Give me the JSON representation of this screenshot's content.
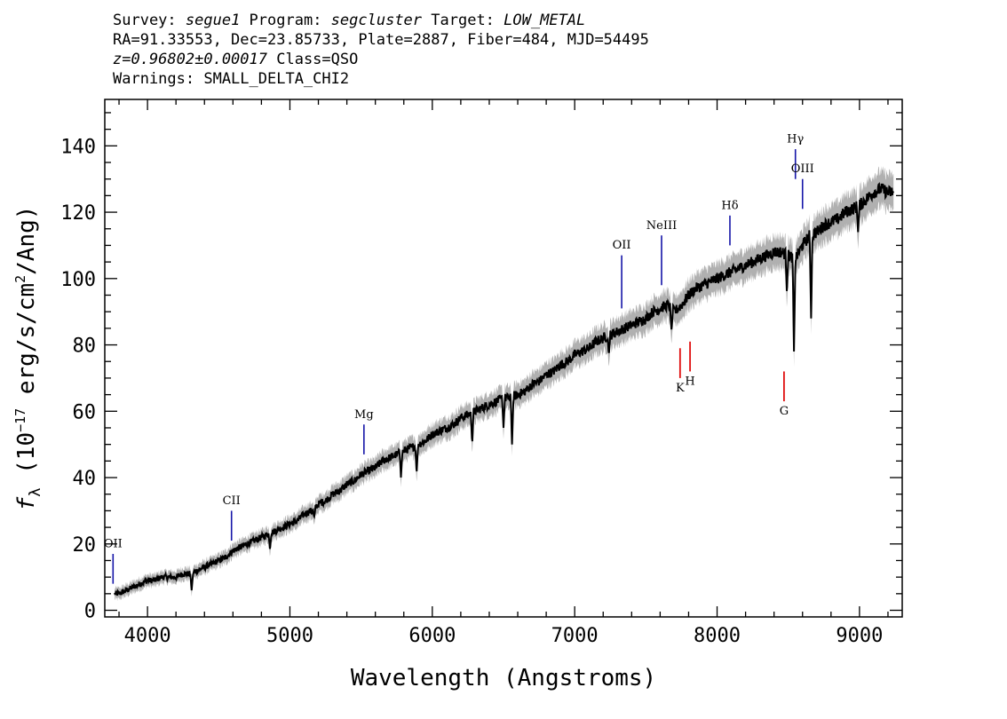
{
  "header": {
    "line1": {
      "survey_label": "Survey: ",
      "survey": "segue1",
      "program_label": " Program: ",
      "program": "segcluster",
      "target_label": " Target: ",
      "target": "LOW_METAL"
    },
    "line2": "RA=91.33553, Dec=23.85733, Plate=2887, Fiber=484, MJD=54495",
    "line3": {
      "z": "z=0.96802±0.00017",
      "class": " Class=QSO"
    },
    "line4": "Warnings: SMALL_DELTA_CHI2"
  },
  "chart_data": {
    "type": "line",
    "xlabel": "Wavelength (Angstroms)",
    "ylabel_parts": {
      "f": "f",
      "lambda": "λ",
      "pre": " (10",
      "exp": "−17",
      "mid": " erg/s/cm",
      "exp2": "2",
      "post": "/Ang)"
    },
    "xlim": [
      3700,
      9300
    ],
    "ylim": [
      -2,
      154
    ],
    "x_ticks": [
      4000,
      5000,
      6000,
      7000,
      8000,
      9000
    ],
    "y_ticks": [
      0,
      20,
      40,
      60,
      80,
      100,
      120,
      140
    ],
    "x_minor_step": 200,
    "y_minor_step": 5,
    "colors": {
      "flux": "#000000",
      "error_band": "#b0b0b0",
      "emission": "#1515a8",
      "absorption": "#e01010"
    },
    "series": [
      {
        "values_x": [
          3800,
          3850,
          3900,
          3950,
          4000,
          4050,
          4100,
          4150,
          4200,
          4250,
          4300,
          4350,
          4400,
          4450,
          4500,
          4550,
          4600,
          4650,
          4700,
          4750,
          4800,
          4850,
          4900,
          4950,
          5000,
          5050,
          5100,
          5150,
          5200,
          5250,
          5300,
          5350,
          5400,
          5450,
          5500,
          5550,
          5600,
          5650,
          5700,
          5750,
          5800,
          5850,
          5900,
          5950,
          6000,
          6050,
          6100,
          6150,
          6200,
          6250,
          6300,
          6350,
          6400,
          6450,
          6500,
          6550,
          6600,
          6650,
          6700,
          6750,
          6800,
          6850,
          6900,
          6950,
          7000,
          7050,
          7100,
          7150,
          7200,
          7250,
          7300,
          7350,
          7400,
          7450,
          7500,
          7550,
          7600,
          7650,
          7700,
          7750,
          7800,
          7850,
          7900,
          7950,
          8000,
          8050,
          8100,
          8150,
          8200,
          8250,
          8300,
          8350,
          8400,
          8450,
          8500,
          8550,
          8600,
          8650,
          8700,
          8750,
          8800,
          8850,
          8900,
          8950,
          9000,
          9050,
          9100,
          9150,
          9200
        ],
        "values_y": [
          5,
          6,
          7,
          8,
          9,
          9,
          10,
          10,
          10,
          11,
          11,
          12,
          13,
          14,
          15,
          16,
          18,
          19,
          20,
          21,
          22,
          23,
          24,
          25,
          26,
          27,
          29,
          30,
          32,
          33,
          35,
          36,
          38,
          39,
          41,
          42,
          43,
          45,
          46,
          47,
          48,
          49,
          50,
          51,
          53,
          54,
          55,
          56,
          58,
          59,
          60,
          61,
          62,
          63,
          64,
          64,
          65,
          66,
          68,
          69,
          71,
          72,
          74,
          75,
          77,
          78,
          79,
          81,
          82,
          83,
          84,
          85,
          86,
          87,
          88,
          90,
          91,
          92,
          90,
          92,
          95,
          97,
          98,
          99,
          100,
          101,
          102,
          103,
          104,
          105,
          106,
          107,
          108,
          108,
          107,
          106,
          110,
          113,
          114,
          116,
          117,
          118,
          120,
          121,
          122,
          124,
          126,
          127,
          126
        ],
        "absorption_dips": [
          {
            "x": 4310,
            "y": 6
          },
          {
            "x": 4860,
            "y": 18
          },
          {
            "x": 5170,
            "y": 28
          },
          {
            "x": 5780,
            "y": 40
          },
          {
            "x": 5890,
            "y": 41
          },
          {
            "x": 6280,
            "y": 50
          },
          {
            "x": 6500,
            "y": 55
          },
          {
            "x": 6560,
            "y": 50
          },
          {
            "x": 7240,
            "y": 77
          },
          {
            "x": 7680,
            "y": 84
          },
          {
            "x": 8490,
            "y": 95
          },
          {
            "x": 8540,
            "y": 78
          },
          {
            "x": 8660,
            "y": 88
          },
          {
            "x": 8990,
            "y": 114
          }
        ]
      }
    ],
    "emission_lines": [
      {
        "label": "OII",
        "x": 3758,
        "y_top": 17,
        "y_bottom": 8,
        "label_y": 19
      },
      {
        "label": "CII",
        "x": 4590,
        "y_top": 30,
        "y_bottom": 21,
        "label_y": 32
      },
      {
        "label": "Mg",
        "x": 5520,
        "y_top": 56,
        "y_bottom": 47,
        "label_y": 58
      },
      {
        "label": "OII",
        "x": 7330,
        "y_top": 107,
        "y_bottom": 91,
        "label_y": 109
      },
      {
        "label": "NeIII",
        "x": 7610,
        "y_top": 113,
        "y_bottom": 98,
        "label_y": 115
      },
      {
        "label": "Hδ",
        "x": 8090,
        "y_top": 119,
        "y_bottom": 110,
        "label_y": 121
      },
      {
        "label": "Hγ",
        "x": 8550,
        "y_top": 139,
        "y_bottom": 130,
        "label_y": 141
      },
      {
        "label": "OIII",
        "x": 8600,
        "y_top": 130,
        "y_bottom": 121,
        "label_y": 132
      }
    ],
    "absorption_lines": [
      {
        "label": "K",
        "x": 7740,
        "y_top": 79,
        "y_bottom": 70,
        "label_y": 66
      },
      {
        "label": "H",
        "x": 7810,
        "y_top": 81,
        "y_bottom": 72,
        "label_y": 68
      },
      {
        "label": "G",
        "x": 8470,
        "y_top": 72,
        "y_bottom": 63,
        "label_y": 59
      }
    ]
  }
}
